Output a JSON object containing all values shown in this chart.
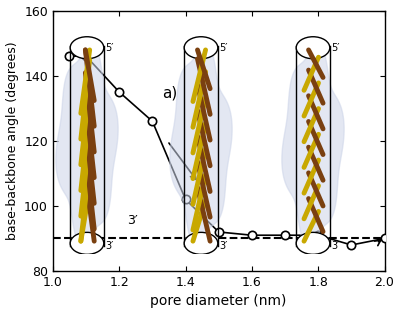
{
  "x": [
    1.05,
    1.1,
    1.2,
    1.3,
    1.4,
    1.5,
    1.6,
    1.7,
    1.8,
    1.9,
    2.0
  ],
  "y": [
    146,
    146,
    135,
    126,
    102,
    92,
    91,
    91,
    91,
    88,
    90
  ],
  "dashed_y": 90,
  "xlim": [
    1.0,
    2.0
  ],
  "ylim": [
    80,
    160
  ],
  "xticks": [
    1.0,
    1.2,
    1.4,
    1.6,
    1.8,
    2.0
  ],
  "yticks": [
    80,
    100,
    120,
    140,
    160
  ],
  "xlabel": "pore diameter (nm)",
  "ylabel": "base-backbone angle (degrees)",
  "label_a": "a)",
  "line_color": "black",
  "marker_facecolor": "white",
  "marker_edgecolor": "black",
  "marker_size": 6,
  "line_width": 1.2,
  "dashed_linewidth": 1.5,
  "bg_color": "#ccd4e8",
  "yellow_color": "#c8a800",
  "brown_color": "#7a4010"
}
